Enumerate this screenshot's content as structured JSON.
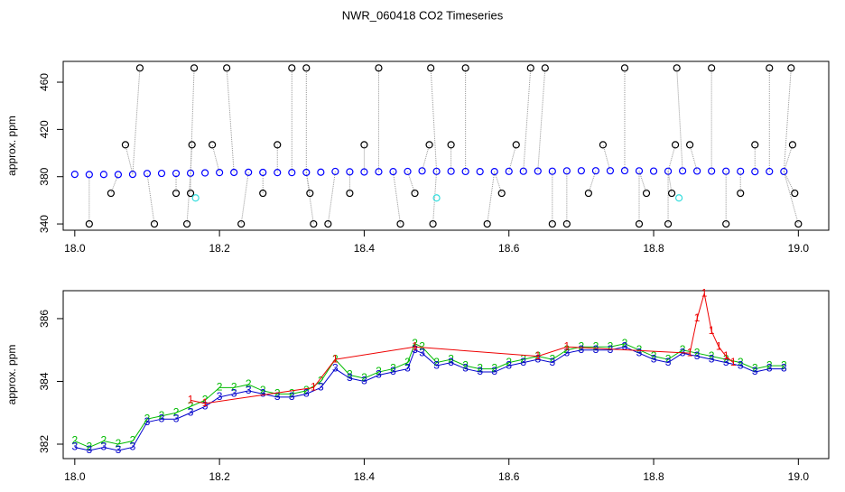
{
  "title": "NWR_060418  CO2 Timeseries",
  "chart_data": [
    {
      "type": "scatter",
      "y_label": "approx. ppm",
      "xlim": [
        17.984,
        19.042
      ],
      "ylim": [
        334.7,
        477.6
      ],
      "xticks": [
        {
          "value": 18,
          "label": "18.0"
        },
        18.2,
        18.4,
        18.6,
        18.8,
        {
          "value": 19,
          "label": "19.0"
        }
      ],
      "yticks": [
        340,
        380,
        420,
        460
      ],
      "series": [
        {
          "color": "#0000ff",
          "marker": "circle",
          "x": [
            18.0,
            18.02,
            18.04,
            18.06,
            18.08,
            18.1,
            18.12,
            18.14,
            18.16,
            18.18,
            18.2,
            18.22,
            18.24,
            18.26,
            18.28,
            18.3,
            18.32,
            18.34,
            18.36,
            18.38,
            18.4,
            18.42,
            18.44,
            18.46,
            18.48,
            18.5,
            18.52,
            18.54,
            18.56,
            18.58,
            18.6,
            18.62,
            18.64,
            18.66,
            18.68,
            18.7,
            18.72,
            18.74,
            18.76,
            18.78,
            18.8,
            18.82,
            18.84,
            18.86,
            18.88,
            18.9,
            18.92,
            18.94,
            18.96,
            18.98
          ],
          "values": [
            382,
            381.8,
            381.9,
            381.8,
            382,
            382.7,
            382.8,
            382.8,
            383,
            383.2,
            383.5,
            383.6,
            383.7,
            383.6,
            383.5,
            383.5,
            383.6,
            383.8,
            384.4,
            384.1,
            384,
            384.2,
            384.3,
            384.4,
            384.9,
            384.5,
            384.6,
            384.4,
            384.3,
            384.3,
            384.5,
            384.6,
            384.7,
            384.6,
            384.9,
            385,
            385,
            385,
            385.1,
            384.9,
            384.7,
            384.6,
            384.9,
            384.8,
            384.7,
            384.6,
            384.5,
            384.3,
            384.4,
            384.4
          ]
        },
        {
          "color": "#000000",
          "marker": "circle",
          "connect_to": 0,
          "x": [
            18.02,
            18.05,
            18.07,
            18.09,
            18.11,
            18.14,
            18.155,
            18.16,
            18.162,
            18.165,
            18.19,
            18.21,
            18.23,
            18.26,
            18.28,
            18.3,
            18.32,
            18.325,
            18.33,
            18.35,
            18.38,
            18.4,
            18.42,
            18.45,
            18.47,
            18.49,
            18.492,
            18.495,
            18.52,
            18.54,
            18.57,
            18.59,
            18.61,
            18.63,
            18.65,
            18.66,
            18.68,
            18.71,
            18.73,
            18.76,
            18.78,
            18.79,
            18.82,
            18.825,
            18.83,
            18.832,
            18.85,
            18.88,
            18.9,
            18.92,
            18.94,
            18.96,
            18.99,
            18.992,
            18.995,
            19.0
          ],
          "values": [
            340,
            366,
            407,
            472,
            340,
            366,
            340,
            366,
            407,
            472,
            407,
            472,
            340,
            366,
            407,
            472,
            472,
            366,
            340,
            340,
            366,
            407,
            472,
            340,
            366,
            407,
            472,
            340,
            407,
            472,
            340,
            366,
            407,
            472,
            472,
            340,
            340,
            366,
            407,
            472,
            340,
            366,
            340,
            366,
            407,
            472,
            407,
            472,
            340,
            366,
            407,
            472,
            472,
            407,
            366,
            340
          ]
        },
        {
          "color": "#33dddd",
          "marker": "circle",
          "x": [
            18.167,
            18.5,
            18.835
          ],
          "values": [
            362,
            362,
            362
          ]
        }
      ]
    },
    {
      "type": "scatter",
      "y_label": "approx. ppm",
      "xlim": [
        17.984,
        19.042
      ],
      "ylim": [
        381.54,
        386.89
      ],
      "xticks": [
        {
          "value": 18,
          "label": "18.0"
        },
        18.2,
        18.4,
        18.6,
        18.8,
        {
          "value": 19,
          "label": "19.0"
        }
      ],
      "yticks": [
        382,
        384,
        386
      ],
      "series": [
        {
          "name": "2",
          "color": "#00bb00",
          "marker": "name",
          "line": true,
          "x": [
            18.0,
            18.02,
            18.04,
            18.06,
            18.08,
            18.1,
            18.12,
            18.14,
            18.16,
            18.18,
            18.2,
            18.22,
            18.24,
            18.26,
            18.28,
            18.3,
            18.32,
            18.34,
            18.36,
            18.38,
            18.4,
            18.42,
            18.44,
            18.46,
            18.47,
            18.48,
            18.5,
            18.52,
            18.54,
            18.56,
            18.58,
            18.6,
            18.62,
            18.64,
            18.66,
            18.68,
            18.7,
            18.72,
            18.74,
            18.76,
            18.78,
            18.8,
            18.82,
            18.84,
            18.86,
            18.88,
            18.9,
            18.92,
            18.94,
            18.96,
            18.98
          ],
          "values": [
            382.1,
            381.9,
            382.1,
            382,
            382.1,
            382.8,
            382.9,
            383,
            383.2,
            383.4,
            383.8,
            383.8,
            383.9,
            383.7,
            383.6,
            383.6,
            383.7,
            384,
            384.7,
            384.2,
            384.1,
            384.3,
            384.4,
            384.6,
            385.2,
            385.1,
            384.6,
            384.7,
            384.5,
            384.4,
            384.4,
            384.6,
            384.7,
            384.8,
            384.7,
            385,
            385.1,
            385.1,
            385.1,
            385.2,
            385,
            384.8,
            384.7,
            385,
            384.9,
            384.8,
            384.7,
            384.6,
            384.4,
            384.5,
            384.5
          ]
        },
        {
          "name": "3",
          "color": "#0000cc",
          "marker": "name",
          "line": true,
          "x": [
            18.0,
            18.02,
            18.04,
            18.06,
            18.08,
            18.1,
            18.12,
            18.14,
            18.16,
            18.18,
            18.2,
            18.22,
            18.24,
            18.26,
            18.28,
            18.3,
            18.32,
            18.34,
            18.36,
            18.38,
            18.4,
            18.42,
            18.44,
            18.46,
            18.47,
            18.48,
            18.5,
            18.52,
            18.54,
            18.56,
            18.58,
            18.6,
            18.62,
            18.64,
            18.66,
            18.68,
            18.7,
            18.72,
            18.74,
            18.76,
            18.78,
            18.8,
            18.82,
            18.84,
            18.86,
            18.88,
            18.9,
            18.92,
            18.94,
            18.96,
            18.98
          ],
          "values": [
            381.9,
            381.8,
            381.9,
            381.8,
            381.9,
            382.7,
            382.8,
            382.8,
            383,
            383.2,
            383.5,
            383.6,
            383.7,
            383.6,
            383.5,
            383.5,
            383.6,
            383.8,
            384.4,
            384.1,
            384,
            384.2,
            384.3,
            384.4,
            385,
            384.9,
            384.5,
            384.6,
            384.4,
            384.3,
            384.3,
            384.5,
            384.6,
            384.7,
            384.6,
            384.9,
            385,
            385,
            385,
            385.1,
            384.9,
            384.7,
            384.6,
            384.9,
            384.8,
            384.7,
            384.6,
            384.5,
            384.3,
            384.4,
            384.4
          ]
        },
        {
          "name": "1",
          "color": "#ee0000",
          "marker": "name",
          "line": true,
          "x": [
            18.16,
            18.18,
            18.33,
            18.36,
            18.47,
            18.64,
            18.68,
            18.85,
            18.86,
            18.87,
            18.88,
            18.89,
            18.9,
            18.91
          ],
          "values": [
            383.4,
            383.3,
            383.8,
            384.7,
            385.1,
            384.8,
            385.1,
            384.9,
            386,
            386.8,
            385.6,
            385.1,
            384.8,
            384.6
          ]
        }
      ]
    }
  ]
}
